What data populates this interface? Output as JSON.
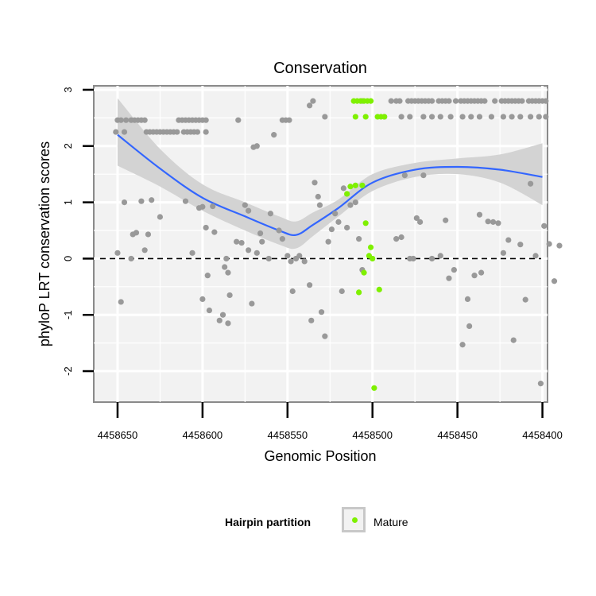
{
  "chart_data": {
    "type": "scatter",
    "title": "Conservation",
    "xlabel": "Genomic Position",
    "ylabel": "phyloP LRT conservation scores",
    "xlim": [
      4458397,
      4458664
    ],
    "x_reversed": true,
    "ylim": [
      -2.55,
      3.07
    ],
    "x_ticks": [
      4458650,
      4458600,
      4458550,
      4458500,
      4458450,
      4458400
    ],
    "x_tick_labels": [
      "4458650",
      "4458600",
      "4458550",
      "4458500",
      "4458450",
      "4458400"
    ],
    "y_ticks": [
      -2,
      -1,
      0,
      1,
      2,
      3
    ],
    "y_tick_labels": [
      "-2",
      "-1",
      "0",
      "1",
      "2",
      "3"
    ],
    "reference_line": {
      "y": 0,
      "style": "dashed"
    },
    "legend": {
      "title": "Hairpin partition",
      "entries": [
        {
          "label": "Mature",
          "color": "#7ff000"
        }
      ]
    },
    "colors": {
      "other": "#999999",
      "mature": "#7ff000",
      "smooth": "#3366ff",
      "band": "#d3d3d3",
      "panel": "#f2f2f2",
      "grid": "#ffffff"
    },
    "smooth": {
      "x": [
        4458650,
        4458625,
        4458600,
        4458575,
        4458555,
        4458545,
        4458535,
        4458520,
        4458500,
        4458475,
        4458450,
        4458425,
        4458400
      ],
      "y": [
        2.2,
        1.6,
        1.08,
        0.75,
        0.5,
        0.42,
        0.6,
        0.9,
        1.35,
        1.58,
        1.63,
        1.58,
        1.45
      ],
      "lower": [
        1.65,
        1.28,
        0.85,
        0.5,
        0.25,
        0.18,
        0.4,
        0.75,
        1.2,
        1.45,
        1.5,
        1.35,
        0.95
      ],
      "upper": [
        2.85,
        1.95,
        1.32,
        1.0,
        0.75,
        0.66,
        0.82,
        1.05,
        1.5,
        1.7,
        1.78,
        1.85,
        2.05
      ]
    },
    "series": [
      {
        "name": "Other",
        "points": [
          [
            4458651,
            2.25
          ],
          [
            4458650,
            2.46
          ],
          [
            4458648,
            2.46
          ],
          [
            4458646,
            2.25
          ],
          [
            4458645,
            2.46
          ],
          [
            4458642,
            2.46
          ],
          [
            4458640,
            2.46
          ],
          [
            4458638,
            2.46
          ],
          [
            4458636,
            2.46
          ],
          [
            4458634,
            2.46
          ],
          [
            4458633,
            2.25
          ],
          [
            4458631,
            2.25
          ],
          [
            4458629,
            2.25
          ],
          [
            4458627,
            2.25
          ],
          [
            4458625,
            2.25
          ],
          [
            4458623,
            2.25
          ],
          [
            4458621,
            2.25
          ],
          [
            4458619,
            2.25
          ],
          [
            4458617,
            2.25
          ],
          [
            4458615,
            2.25
          ],
          [
            4458614,
            2.46
          ],
          [
            4458612,
            2.46
          ],
          [
            4458610,
            2.46
          ],
          [
            4458608,
            2.46
          ],
          [
            4458606,
            2.46
          ],
          [
            4458604,
            2.46
          ],
          [
            4458602,
            2.46
          ],
          [
            4458600,
            2.46
          ],
          [
            4458598,
            2.46
          ],
          [
            4458611,
            2.25
          ],
          [
            4458609,
            2.25
          ],
          [
            4458607,
            2.25
          ],
          [
            4458605,
            2.25
          ],
          [
            4458603,
            2.25
          ],
          [
            4458598,
            2.25
          ],
          [
            4458579,
            2.46
          ],
          [
            4458553,
            2.46
          ],
          [
            4458551,
            2.46
          ],
          [
            4458549,
            2.46
          ],
          [
            4458558,
            2.2
          ],
          [
            4458570,
            1.98
          ],
          [
            4458568,
            2.0
          ],
          [
            4458537,
            2.72
          ],
          [
            4458535,
            2.8
          ],
          [
            4458528,
            2.52
          ],
          [
            4458506,
            2.8
          ],
          [
            4458489,
            2.8
          ],
          [
            4458486,
            2.8
          ],
          [
            4458484,
            2.8
          ],
          [
            4458479,
            2.8
          ],
          [
            4458477,
            2.8
          ],
          [
            4458475,
            2.8
          ],
          [
            4458473,
            2.8
          ],
          [
            4458471,
            2.8
          ],
          [
            4458469,
            2.8
          ],
          [
            4458467,
            2.8
          ],
          [
            4458465,
            2.8
          ],
          [
            4458461,
            2.8
          ],
          [
            4458459,
            2.8
          ],
          [
            4458457,
            2.8
          ],
          [
            4458455,
            2.8
          ],
          [
            4458451,
            2.8
          ],
          [
            4458448,
            2.8
          ],
          [
            4458446,
            2.8
          ],
          [
            4458444,
            2.8
          ],
          [
            4458442,
            2.8
          ],
          [
            4458440,
            2.8
          ],
          [
            4458438,
            2.8
          ],
          [
            4458436,
            2.8
          ],
          [
            4458434,
            2.8
          ],
          [
            4458428,
            2.8
          ],
          [
            4458424,
            2.8
          ],
          [
            4458422,
            2.8
          ],
          [
            4458420,
            2.8
          ],
          [
            4458418,
            2.8
          ],
          [
            4458416,
            2.8
          ],
          [
            4458414,
            2.8
          ],
          [
            4458412,
            2.8
          ],
          [
            4458408,
            2.8
          ],
          [
            4458406,
            2.8
          ],
          [
            4458404,
            2.8
          ],
          [
            4458402,
            2.8
          ],
          [
            4458400,
            2.8
          ],
          [
            4458398,
            2.8
          ],
          [
            4458493,
            2.52
          ],
          [
            4458483,
            2.52
          ],
          [
            4458478,
            2.52
          ],
          [
            4458470,
            2.52
          ],
          [
            4458465,
            2.52
          ],
          [
            4458460,
            2.52
          ],
          [
            4458454,
            2.52
          ],
          [
            4458447,
            2.52
          ],
          [
            4458442,
            2.52
          ],
          [
            4458437,
            2.52
          ],
          [
            4458430,
            2.52
          ],
          [
            4458423,
            2.52
          ],
          [
            4458418,
            2.52
          ],
          [
            4458413,
            2.52
          ],
          [
            4458407,
            2.52
          ],
          [
            4458402,
            2.52
          ],
          [
            4458398,
            2.52
          ],
          [
            4458650,
            0.1
          ],
          [
            4458648,
            -0.77
          ],
          [
            4458646,
            1.0
          ],
          [
            4458642,
            0.0
          ],
          [
            4458641,
            0.43
          ],
          [
            4458639,
            0.46
          ],
          [
            4458636,
            1.02
          ],
          [
            4458634,
            0.15
          ],
          [
            4458632,
            0.43
          ],
          [
            4458630,
            1.04
          ],
          [
            4458625,
            0.74
          ],
          [
            4458610,
            1.02
          ],
          [
            4458606,
            0.1
          ],
          [
            4458602,
            0.9
          ],
          [
            4458600,
            -0.72
          ],
          [
            4458600,
            0.92
          ],
          [
            4458598,
            0.55
          ],
          [
            4458597,
            -0.3
          ],
          [
            4458596,
            -0.92
          ],
          [
            4458594,
            0.93
          ],
          [
            4458593,
            0.47
          ],
          [
            4458590,
            -1.1
          ],
          [
            4458588,
            -1.0
          ],
          [
            4458586,
            0.0
          ],
          [
            4458585,
            -0.25
          ],
          [
            4458587,
            -0.15
          ],
          [
            4458585,
            -1.15
          ],
          [
            4458584,
            -0.65
          ],
          [
            4458580,
            0.3
          ],
          [
            4458577,
            0.28
          ],
          [
            4458575,
            0.95
          ],
          [
            4458573,
            0.85
          ],
          [
            4458573,
            0.15
          ],
          [
            4458571,
            -0.8
          ],
          [
            4458568,
            0.1
          ],
          [
            4458566,
            0.45
          ],
          [
            4458565,
            0.3
          ],
          [
            4458561,
            0.0
          ],
          [
            4458560,
            0.8
          ],
          [
            4458555,
            0.5
          ],
          [
            4458553,
            0.35
          ],
          [
            4458550,
            0.05
          ],
          [
            4458548,
            -0.05
          ],
          [
            4458547,
            -0.58
          ],
          [
            4458545,
            0.0
          ],
          [
            4458543,
            0.05
          ],
          [
            4458540,
            -0.05
          ],
          [
            4458537,
            -0.47
          ],
          [
            4458536,
            -1.1
          ],
          [
            4458534,
            1.35
          ],
          [
            4458531,
            0.95
          ],
          [
            4458532,
            1.1
          ],
          [
            4458530,
            -0.95
          ],
          [
            4458528,
            -1.38
          ],
          [
            4458526,
            0.3
          ],
          [
            4458524,
            0.52
          ],
          [
            4458522,
            0.8
          ],
          [
            4458520,
            0.65
          ],
          [
            4458518,
            -0.58
          ],
          [
            4458517,
            1.25
          ],
          [
            4458515,
            0.55
          ],
          [
            4458513,
            0.95
          ],
          [
            4458510,
            1.0
          ],
          [
            4458508,
            0.35
          ],
          [
            4458506,
            -0.2
          ],
          [
            4458486,
            0.35
          ],
          [
            4458483,
            0.38
          ],
          [
            4458481,
            1.48
          ],
          [
            4458478,
            0.0
          ],
          [
            4458476,
            0.0
          ],
          [
            4458474,
            0.72
          ],
          [
            4458472,
            0.65
          ],
          [
            4458470,
            1.48
          ],
          [
            4458465,
            0.0
          ],
          [
            4458460,
            0.05
          ],
          [
            4458457,
            0.68
          ],
          [
            4458455,
            -0.35
          ],
          [
            4458452,
            -0.2
          ],
          [
            4458447,
            -1.53
          ],
          [
            4458444,
            -0.72
          ],
          [
            4458443,
            -1.2
          ],
          [
            4458440,
            -0.3
          ],
          [
            4458437,
            0.78
          ],
          [
            4458436,
            -0.25
          ],
          [
            4458432,
            0.66
          ],
          [
            4458429,
            0.65
          ],
          [
            4458426,
            0.63
          ],
          [
            4458423,
            0.1
          ],
          [
            4458420,
            0.33
          ],
          [
            4458417,
            -1.45
          ],
          [
            4458413,
            0.25
          ],
          [
            4458410,
            -0.73
          ],
          [
            4458407,
            1.33
          ],
          [
            4458404,
            0.05
          ],
          [
            4458401,
            -2.22
          ],
          [
            4458399,
            0.58
          ],
          [
            4458396,
            0.26
          ],
          [
            4458393,
            -0.4
          ],
          [
            4458390,
            0.23
          ]
        ]
      },
      {
        "name": "Mature",
        "points": [
          [
            4458511,
            2.8
          ],
          [
            4458509,
            2.8
          ],
          [
            4458507,
            2.8
          ],
          [
            4458505,
            2.8
          ],
          [
            4458503,
            2.8
          ],
          [
            4458501,
            2.8
          ],
          [
            4458510,
            2.52
          ],
          [
            4458504,
            2.52
          ],
          [
            4458497,
            2.52
          ],
          [
            4458495,
            2.52
          ],
          [
            4458493,
            2.52
          ],
          [
            4458515,
            1.15
          ],
          [
            4458513,
            1.28
          ],
          [
            4458510,
            1.3
          ],
          [
            4458506,
            1.3
          ],
          [
            4458504,
            0.63
          ],
          [
            4458501,
            0.2
          ],
          [
            4458500,
            0.0
          ],
          [
            4458502,
            0.05
          ],
          [
            4458505,
            -0.25
          ],
          [
            4458496,
            -0.55
          ],
          [
            4458508,
            -0.6
          ],
          [
            4458499,
            -2.3
          ]
        ]
      }
    ]
  }
}
